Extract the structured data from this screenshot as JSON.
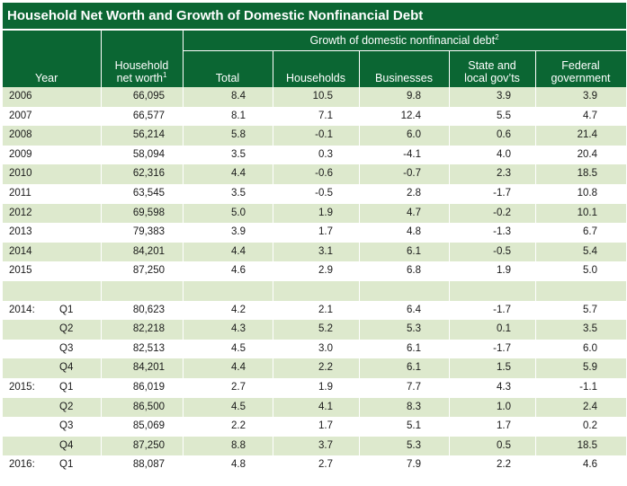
{
  "title": "Household Net Worth and Growth of Domestic Nonfinancial Debt",
  "header": {
    "year": "Year",
    "net_worth_line1": "Household",
    "net_worth_line2": "net worth",
    "net_worth_sup": "1",
    "group_label": "Growth of domestic nonfinancial debt",
    "group_sup": "2",
    "total": "Total",
    "households": "Households",
    "businesses": "Businesses",
    "state_line1": "State and",
    "state_line2": "local gov’ts",
    "federal_line1": "Federal",
    "federal_line2": "government"
  },
  "rows": [
    {
      "year": "2006",
      "q": "",
      "hnw": "66,095",
      "total": "8.4",
      "households": "10.5",
      "businesses": "9.8",
      "state": "3.9",
      "federal": "3.9"
    },
    {
      "year": "2007",
      "q": "",
      "hnw": "66,577",
      "total": "8.1",
      "households": "7.1",
      "businesses": "12.4",
      "state": "5.5",
      "federal": "4.7"
    },
    {
      "year": "2008",
      "q": "",
      "hnw": "56,214",
      "total": "5.8",
      "households": "-0.1",
      "businesses": "6.0",
      "state": "0.6",
      "federal": "21.4"
    },
    {
      "year": "2009",
      "q": "",
      "hnw": "58,094",
      "total": "3.5",
      "households": "0.3",
      "businesses": "-4.1",
      "state": "4.0",
      "federal": "20.4"
    },
    {
      "year": "2010",
      "q": "",
      "hnw": "62,316",
      "total": "4.4",
      "households": "-0.6",
      "businesses": "-0.7",
      "state": "2.3",
      "federal": "18.5"
    },
    {
      "year": "2011",
      "q": "",
      "hnw": "63,545",
      "total": "3.5",
      "households": "-0.5",
      "businesses": "2.8",
      "state": "-1.7",
      "federal": "10.8"
    },
    {
      "year": "2012",
      "q": "",
      "hnw": "69,598",
      "total": "5.0",
      "households": "1.9",
      "businesses": "4.7",
      "state": "-0.2",
      "federal": "10.1"
    },
    {
      "year": "2013",
      "q": "",
      "hnw": "79,383",
      "total": "3.9",
      "households": "1.7",
      "businesses": "4.8",
      "state": "-1.3",
      "federal": "6.7"
    },
    {
      "year": "2014",
      "q": "",
      "hnw": "84,201",
      "total": "4.4",
      "households": "3.1",
      "businesses": "6.1",
      "state": "-0.5",
      "federal": "5.4"
    },
    {
      "year": "2015",
      "q": "",
      "hnw": "87,250",
      "total": "4.6",
      "households": "2.9",
      "businesses": "6.8",
      "state": "1.9",
      "federal": "5.0"
    },
    {
      "year": "",
      "q": "",
      "hnw": "",
      "total": "",
      "households": "",
      "businesses": "",
      "state": "",
      "federal": ""
    },
    {
      "year": "2014:",
      "q": "Q1",
      "hnw": "80,623",
      "total": "4.2",
      "households": "2.1",
      "businesses": "6.4",
      "state": "-1.7",
      "federal": "5.7"
    },
    {
      "year": "",
      "q": "Q2",
      "hnw": "82,218",
      "total": "4.3",
      "households": "5.2",
      "businesses": "5.3",
      "state": "0.1",
      "federal": "3.5"
    },
    {
      "year": "",
      "q": "Q3",
      "hnw": "82,513",
      "total": "4.5",
      "households": "3.0",
      "businesses": "6.1",
      "state": "-1.7",
      "federal": "6.0"
    },
    {
      "year": "",
      "q": "Q4",
      "hnw": "84,201",
      "total": "4.4",
      "households": "2.2",
      "businesses": "6.1",
      "state": "1.5",
      "federal": "5.9"
    },
    {
      "year": "2015:",
      "q": "Q1",
      "hnw": "86,019",
      "total": "2.7",
      "households": "1.9",
      "businesses": "7.7",
      "state": "4.3",
      "federal": "-1.1"
    },
    {
      "year": "",
      "q": "Q2",
      "hnw": "86,500",
      "total": "4.5",
      "households": "4.1",
      "businesses": "8.3",
      "state": "1.0",
      "federal": "2.4"
    },
    {
      "year": "",
      "q": "Q3",
      "hnw": "85,069",
      "total": "2.2",
      "households": "1.7",
      "businesses": "5.1",
      "state": "1.7",
      "federal": "0.2"
    },
    {
      "year": "",
      "q": "Q4",
      "hnw": "87,250",
      "total": "8.8",
      "households": "3.7",
      "businesses": "5.3",
      "state": "0.5",
      "federal": "18.5"
    },
    {
      "year": "2016:",
      "q": "Q1",
      "hnw": "88,087",
      "total": "4.8",
      "households": "2.7",
      "businesses": "7.9",
      "state": "2.2",
      "federal": "4.6"
    }
  ],
  "colors": {
    "header_bg": "#0b6633",
    "stripe": "#dde9cd"
  }
}
